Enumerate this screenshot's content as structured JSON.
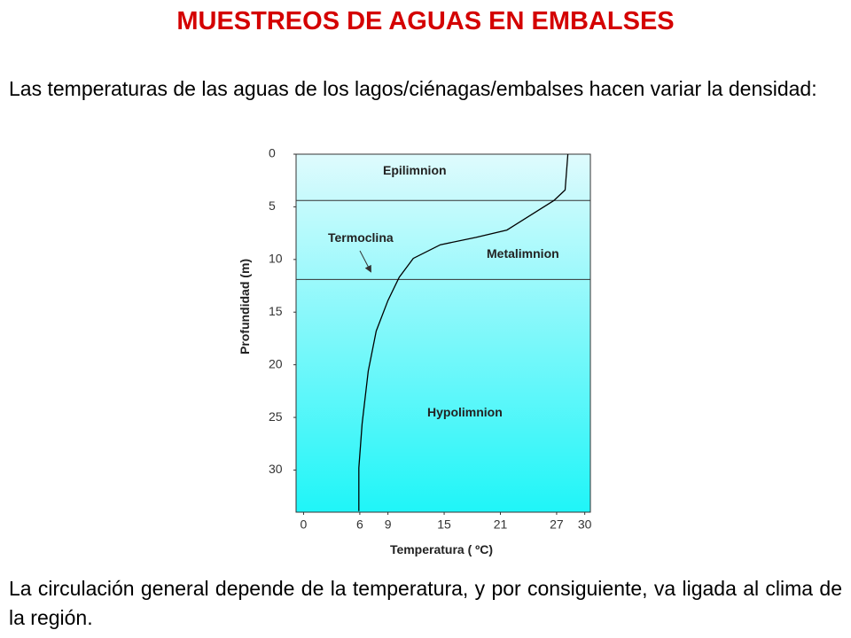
{
  "title": "MUESTREOS DE AGUAS EN EMBALSES",
  "intro": "Las temperaturas de las aguas de los lagos/ciénagas/embalses hacen variar la densidad:",
  "conclusion": "La circulación general depende de la temperatura, y por consiguiente, va ligada al clima de la región.",
  "chart_data": {
    "type": "line",
    "x_label": "Temperatura ( ºC)",
    "y_label": "Profundidad (m)",
    "series": [
      {
        "color": "#000000",
        "x": [
          28.2,
          27.9,
          26.7,
          21.7,
          18.4,
          14.6,
          11.7,
          10.2,
          9.0,
          7.75,
          6.9,
          6.25,
          5.9,
          5.9
        ],
        "values": [
          0,
          3.4,
          4.4,
          7.2,
          7.9,
          8.6,
          9.9,
          11.7,
          13.9,
          16.8,
          20.6,
          25.6,
          29.8,
          33.9
        ]
      }
    ],
    "xlim": [
      -0.8,
      30.6
    ],
    "xticks": [
      0,
      6,
      9,
      15,
      21,
      27,
      30
    ],
    "ylim": [
      0,
      34
    ],
    "yticks": [
      0,
      5,
      10,
      15,
      20,
      25,
      30
    ],
    "y_inverted": true,
    "layer_boundaries": [
      4.4,
      11.9
    ],
    "annotations": [
      "Epilimnion",
      "Metalimnion",
      "Hypolimnion",
      "Termoclina"
    ]
  }
}
